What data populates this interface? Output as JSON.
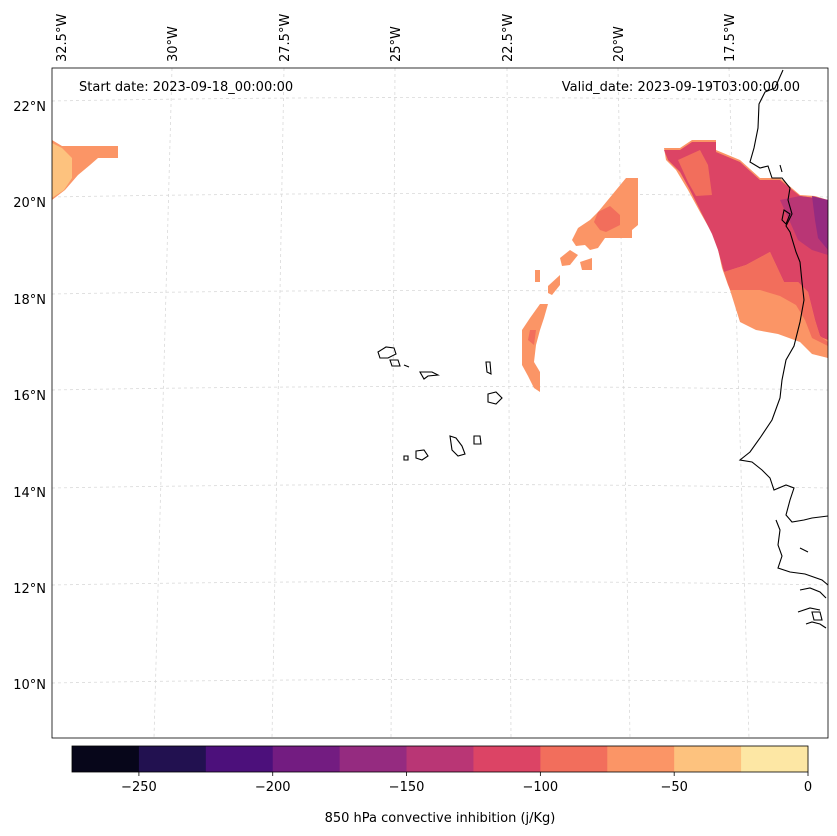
{
  "header": {
    "start_date": "Start date: 2023-09-18_00:00:00",
    "valid_date": "Valid_date: 2023-09-19T03:00:00.00"
  },
  "longitude_labels": [
    "32.5°W",
    "30°W",
    "27.5°W",
    "25°W",
    "22.5°W",
    "20°W",
    "17.5°W"
  ],
  "latitude_labels": [
    "22°N",
    "20°N",
    "18°N",
    "16°N",
    "14°N",
    "12°N",
    "10°N"
  ],
  "colorbar": {
    "label": "850 hPa convective inhibition (j/Kg)",
    "ticks": [
      "−250",
      "−200",
      "−150",
      "−100",
      "−50",
      "0"
    ],
    "min": -275,
    "max": 0,
    "bin_colors": [
      "#07061a",
      "#221150",
      "#4c107b",
      "#731c81",
      "#952b80",
      "#b93675",
      "#dc4465",
      "#f26e5c",
      "#fb9566",
      "#fdc27e",
      "#fde7a4"
    ]
  },
  "map": {
    "variable": "850 hPa convective inhibition",
    "units": "j/Kg",
    "extent": {
      "lon_min": -33,
      "lon_max": -16,
      "lat_min": 9,
      "lat_max": 23
    },
    "regions": [
      {
        "name": "northwest-patch",
        "range": "-75 to 0"
      },
      {
        "name": "central-arc",
        "range": "-75 to -50"
      },
      {
        "name": "coastal-patch",
        "range": "-175 to -50"
      }
    ]
  }
}
